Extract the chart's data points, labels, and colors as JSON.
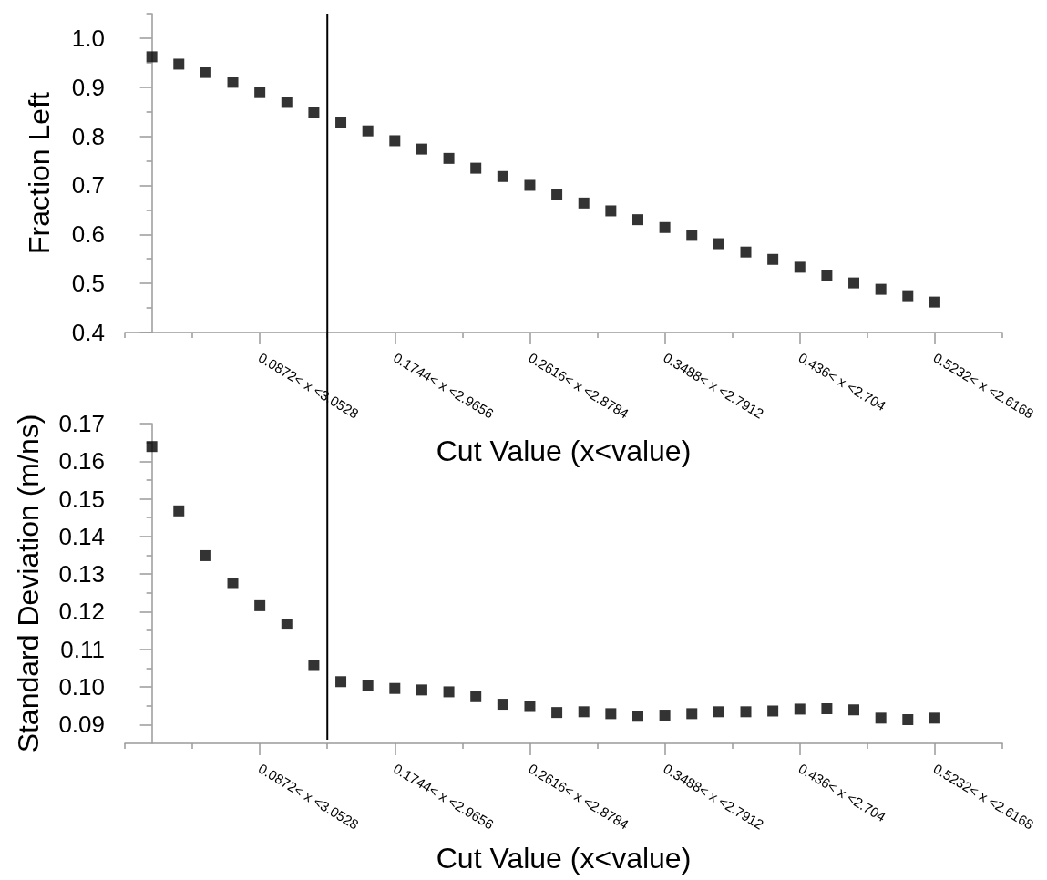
{
  "chart_data": [
    {
      "type": "scatter",
      "ylabel": "Fraction Left",
      "xlabel": "Cut Value (x<value)",
      "color": "#000000",
      "marker": "square",
      "categories": [
        null,
        null,
        null,
        null,
        "0.0872< x <3.0528",
        null,
        null,
        null,
        null,
        "0.1744< x <2.9656",
        null,
        null,
        null,
        null,
        "0.2616< x <2.8784",
        null,
        null,
        null,
        null,
        "0.3488< x <2.7912",
        null,
        null,
        null,
        null,
        "0.436< x <2.704",
        null,
        null,
        null,
        null,
        "0.5232< x <2.6168"
      ],
      "values": [
        0.962,
        0.947,
        0.93,
        0.91,
        0.889,
        0.869,
        0.849,
        0.829,
        0.811,
        0.791,
        0.774,
        0.755,
        0.735,
        0.718,
        0.7,
        0.682,
        0.664,
        0.648,
        0.63,
        0.614,
        0.598,
        0.581,
        0.564,
        0.549,
        0.533,
        0.517,
        0.501,
        0.488,
        0.475,
        0.462
      ],
      "ylim": [
        0.4,
        1.05
      ],
      "yticks": [
        0.4,
        {
          "value": 0.45,
          "label": null
        },
        0.5,
        {
          "value": 0.55,
          "label": null
        },
        0.6,
        {
          "value": 0.65,
          "label": null
        },
        0.7,
        {
          "value": 0.75,
          "label": null
        },
        0.8,
        {
          "value": 0.85,
          "label": null
        },
        0.9,
        {
          "value": 0.95,
          "label": null
        },
        {
          "value": 1,
          "label": "1.0"
        },
        {
          "value": 1.05,
          "label": null
        }
      ]
    },
    {
      "type": "scatter",
      "ylabel": "Standard Deviation (m/ns)",
      "xlabel": "Cut Value (x<value)",
      "color": "#000000",
      "marker": "square",
      "categories": [
        null,
        null,
        null,
        null,
        "0.0872< x <3.0528",
        null,
        null,
        null,
        null,
        "0.1744< x <2.9656",
        null,
        null,
        null,
        null,
        "0.2616< x <2.8784",
        null,
        null,
        null,
        null,
        "0.3488< x <2.7912",
        null,
        null,
        null,
        null,
        "0.436< x <2.704",
        null,
        null,
        null,
        null,
        "0.5232< x <2.6168"
      ],
      "values": [
        0.1639,
        0.1468,
        0.1349,
        0.1275,
        0.1216,
        0.1167,
        0.1057,
        0.1014,
        0.1004,
        0.0996,
        0.0992,
        0.0987,
        0.0974,
        0.0954,
        0.0948,
        0.0932,
        0.0934,
        0.0929,
        0.0922,
        0.0925,
        0.0929,
        0.0934,
        0.0934,
        0.0936,
        0.0941,
        0.0942,
        0.0939,
        0.0917,
        0.0913,
        0.0917
      ],
      "ylim": [
        0.085,
        0.17
      ],
      "yticks": [
        0.09,
        {
          "value": 0.095,
          "label": null
        },
        {
          "value": 0.1,
          "label": "0.10"
        },
        {
          "value": 0.105,
          "label": null
        },
        0.11,
        {
          "value": 0.115,
          "label": null
        },
        0.12,
        {
          "value": 0.125,
          "label": null
        },
        0.13,
        {
          "value": 0.135,
          "label": null
        },
        0.14,
        {
          "value": 0.145,
          "label": null
        },
        0.15,
        {
          "value": 0.155,
          "label": null
        },
        0.16,
        {
          "value": 0.165,
          "label": null
        },
        0.17
      ]
    }
  ]
}
